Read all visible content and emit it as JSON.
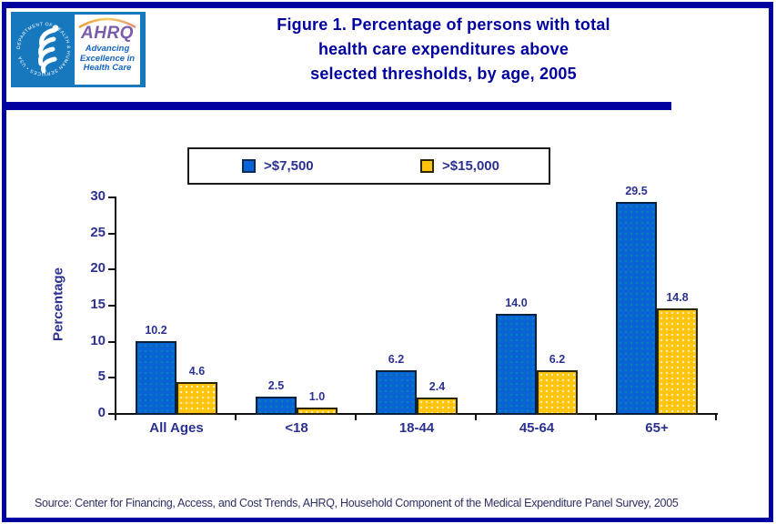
{
  "header": {
    "logo": {
      "hhs_seal_text": "DEPARTMENT OF HEALTH & HUMAN SERVICES • USA",
      "ahrq_acronym": "AHRQ",
      "tagline_line1": "Advancing",
      "tagline_line2": "Excellence in",
      "tagline_line3": "Health Care"
    },
    "title_line1": "Figure 1. Percentage of persons with total",
    "title_line2": "health care expenditures above",
    "title_line3": "selected thresholds, by age, 2005"
  },
  "legend": {
    "items": [
      {
        "label": ">$7,500",
        "color": "#0A63D4"
      },
      {
        "label": ">$15,000",
        "color": "#FFC40D"
      }
    ]
  },
  "chart_data": {
    "type": "bar",
    "categories": [
      "All Ages",
      "<18",
      "18-44",
      "45-64",
      "65+"
    ],
    "series": [
      {
        "name": ">$7,500",
        "color": "#0A63D4",
        "values": [
          10.2,
          2.5,
          6.2,
          14.0,
          29.5
        ]
      },
      {
        "name": ">$15,000",
        "color": "#FFC40D",
        "values": [
          4.6,
          1.0,
          2.4,
          6.2,
          14.8
        ]
      }
    ],
    "title": "Figure 1. Percentage of persons with total health care expenditures above selected thresholds, by age, 2005",
    "xlabel": "",
    "ylabel": "Percentage",
    "ylim": [
      0,
      30
    ],
    "yticks": [
      0,
      5,
      10,
      15,
      20,
      25,
      30
    ],
    "grid": false,
    "legend_position": "top",
    "value_labels": true
  },
  "footer": {
    "source": "Source: Center for Financing, Access, and Cost Trends, AHRQ, Household Component of the Medical Expenditure Panel Survey, 2005"
  },
  "colors": {
    "page_border_navy": "#0000A1",
    "title_navy": "#0000A0",
    "label_navy": "#2B3191",
    "bar_blue": "#0A63D4",
    "bar_yellow": "#FFC40D",
    "logo_blue": "#1878BE",
    "ahrq_purple": "#7A5CA8"
  }
}
